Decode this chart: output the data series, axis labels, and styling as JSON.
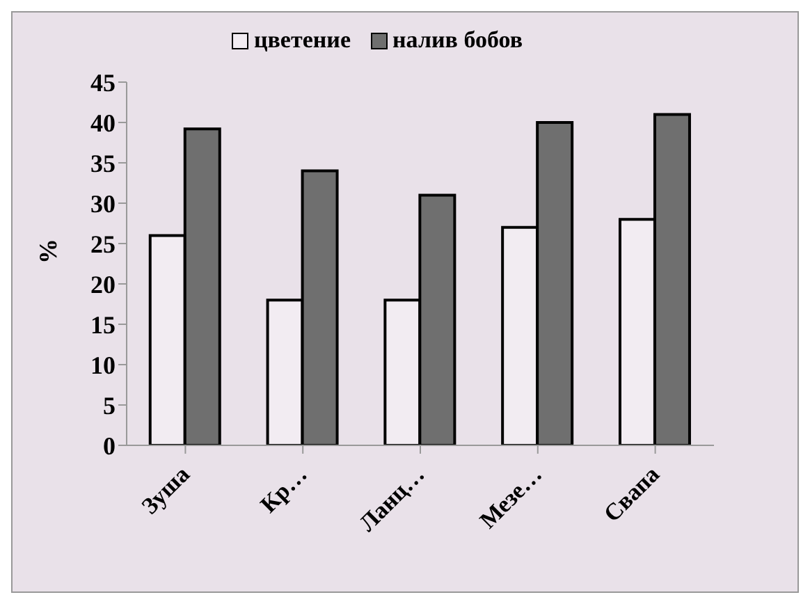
{
  "chart_data": {
    "type": "bar",
    "categories": [
      "Зуша",
      "Кр…",
      "Ланц…",
      "Мезе…",
      "Свапа"
    ],
    "series": [
      {
        "name": "цветение",
        "color": "#f2ecf2",
        "values": [
          26,
          18,
          18,
          27,
          28
        ]
      },
      {
        "name": "налив бобов",
        "color": "#6f6f6f",
        "values": [
          39.2,
          34,
          31,
          40,
          41
        ]
      }
    ],
    "ylabel": "%",
    "ylim": [
      0,
      45
    ],
    "yticks": [
      0,
      5,
      10,
      15,
      20,
      25,
      30,
      35,
      40,
      45
    ],
    "grid": false,
    "legend": "top"
  }
}
